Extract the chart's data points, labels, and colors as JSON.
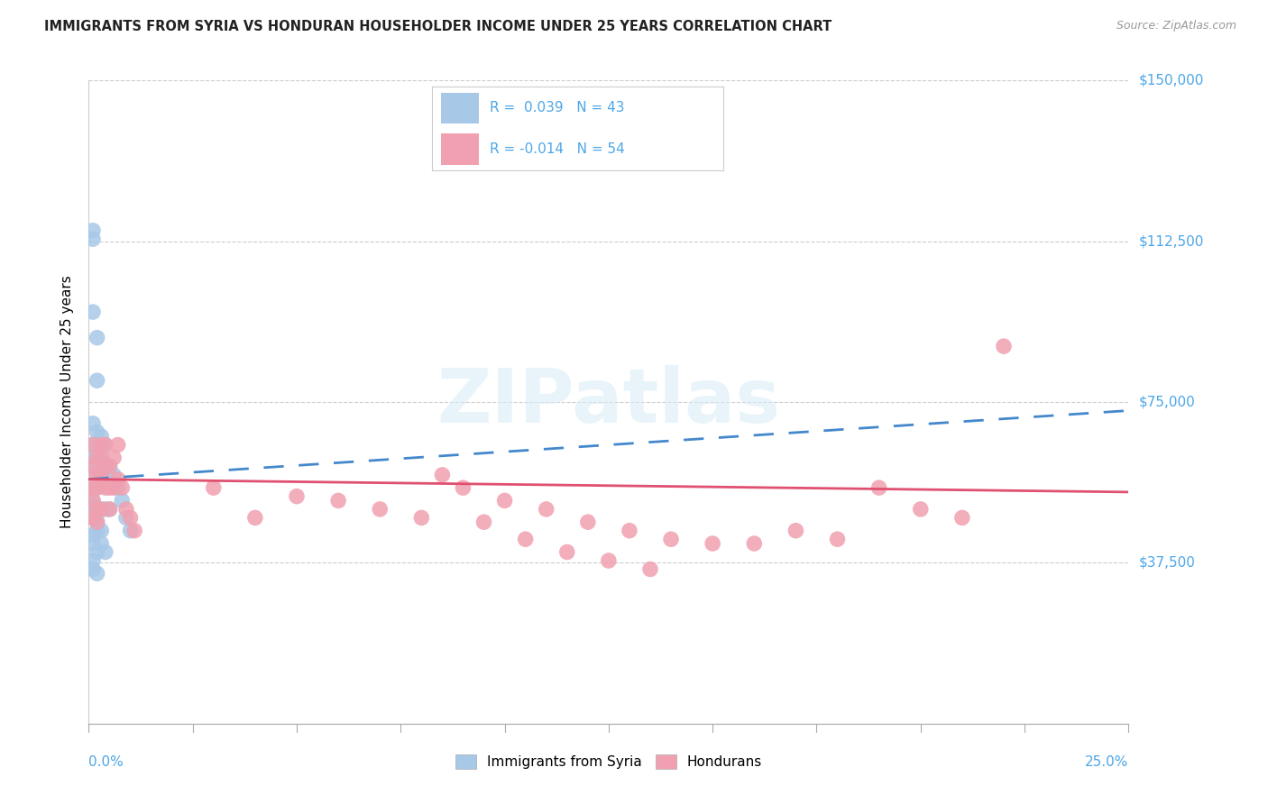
{
  "title": "IMMIGRANTS FROM SYRIA VS HONDURAN HOUSEHOLDER INCOME UNDER 25 YEARS CORRELATION CHART",
  "source": "Source: ZipAtlas.com",
  "ylabel": "Householder Income Under 25 years",
  "xmin": 0.0,
  "xmax": 0.25,
  "ymin": 0,
  "ymax": 150000,
  "yticks": [
    0,
    37500,
    75000,
    112500,
    150000
  ],
  "ytick_labels": [
    "",
    "$37,500",
    "$75,000",
    "$112,500",
    "$150,000"
  ],
  "color_syria": "#a8c8e8",
  "color_honduras": "#f0a0b0",
  "trendline_syria_color": "#4488cc",
  "trendline_honduras_color": "#e05070",
  "watermark_text": "ZIPatlas",
  "syria_x": [
    0.001,
    0.001,
    0.001,
    0.001,
    0.001,
    0.001,
    0.001,
    0.001,
    0.001,
    0.001,
    0.002,
    0.002,
    0.002,
    0.002,
    0.002,
    0.002,
    0.002,
    0.002,
    0.003,
    0.003,
    0.003,
    0.003,
    0.003,
    0.004,
    0.004,
    0.004,
    0.005,
    0.005,
    0.006,
    0.007,
    0.008,
    0.009,
    0.01,
    0.001,
    0.002,
    0.003,
    0.004,
    0.001,
    0.001,
    0.002,
    0.001,
    0.001,
    0.002
  ],
  "syria_y": [
    113000,
    115000,
    96000,
    70000,
    65000,
    62000,
    60000,
    55000,
    52000,
    50000,
    90000,
    80000,
    68000,
    62000,
    58000,
    55000,
    50000,
    47000,
    67000,
    62000,
    58000,
    50000,
    45000,
    65000,
    58000,
    50000,
    60000,
    50000,
    58000,
    55000,
    52000,
    48000,
    45000,
    48000,
    45000,
    42000,
    40000,
    38000,
    36000,
    35000,
    44000,
    42000,
    40000
  ],
  "honduras_x": [
    0.001,
    0.001,
    0.001,
    0.001,
    0.001,
    0.002,
    0.002,
    0.002,
    0.002,
    0.002,
    0.003,
    0.003,
    0.003,
    0.003,
    0.004,
    0.004,
    0.004,
    0.005,
    0.005,
    0.005,
    0.006,
    0.006,
    0.007,
    0.007,
    0.008,
    0.009,
    0.01,
    0.011,
    0.03,
    0.04,
    0.05,
    0.06,
    0.07,
    0.08,
    0.09,
    0.1,
    0.11,
    0.12,
    0.13,
    0.14,
    0.15,
    0.16,
    0.17,
    0.18,
    0.19,
    0.2,
    0.21,
    0.22,
    0.085,
    0.095,
    0.105,
    0.115,
    0.125,
    0.135
  ],
  "honduras_y": [
    65000,
    60000,
    55000,
    52000,
    48000,
    62000,
    58000,
    55000,
    50000,
    47000,
    65000,
    62000,
    58000,
    50000,
    65000,
    60000,
    55000,
    60000,
    55000,
    50000,
    62000,
    55000,
    65000,
    57000,
    55000,
    50000,
    48000,
    45000,
    55000,
    48000,
    53000,
    52000,
    50000,
    48000,
    55000,
    52000,
    50000,
    47000,
    45000,
    43000,
    42000,
    42000,
    45000,
    43000,
    55000,
    50000,
    48000,
    88000,
    58000,
    47000,
    43000,
    40000,
    38000,
    36000
  ],
  "syria_trend_x": [
    0.0,
    0.25
  ],
  "syria_trend_y": [
    57000,
    73000
  ],
  "honduras_trend_x": [
    0.0,
    0.25
  ],
  "honduras_trend_y": [
    57000,
    54000
  ]
}
